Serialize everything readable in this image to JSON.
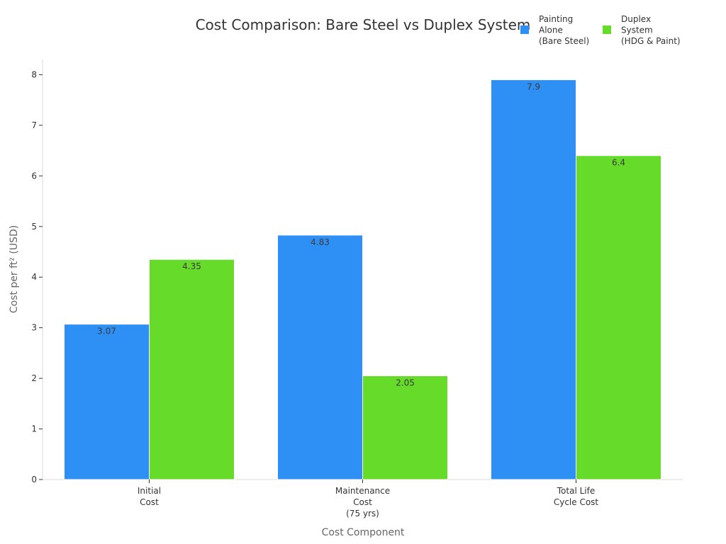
{
  "chart_data": {
    "type": "bar",
    "title": "Cost Comparison: Bare Steel vs Duplex System",
    "xlabel": "Cost Component",
    "ylabel": "Cost per ft² (USD)",
    "categories": [
      [
        "Initial",
        "Cost"
      ],
      [
        "Maintenance",
        "Cost",
        "(75 yrs)"
      ],
      [
        "Total Life",
        "Cycle Cost"
      ]
    ],
    "series": [
      {
        "name": [
          "Painting",
          "Alone",
          "(Bare Steel)"
        ],
        "color": "#2e8ff5",
        "values": [
          3.07,
          4.83,
          7.9
        ],
        "value_labels": [
          "3.07",
          "4.83",
          "7.9"
        ]
      },
      {
        "name": [
          "Duplex",
          "System",
          "(HDG & Paint)"
        ],
        "color": "#66db29",
        "values": [
          4.35,
          2.05,
          6.4
        ],
        "value_labels": [
          "4.35",
          "2.05",
          "6.4"
        ]
      }
    ],
    "ylim": [
      0,
      8.3
    ],
    "yticks": [
      0,
      1,
      2,
      3,
      4,
      5,
      6,
      7,
      8
    ],
    "grid": false,
    "legend_position": "top-right"
  }
}
